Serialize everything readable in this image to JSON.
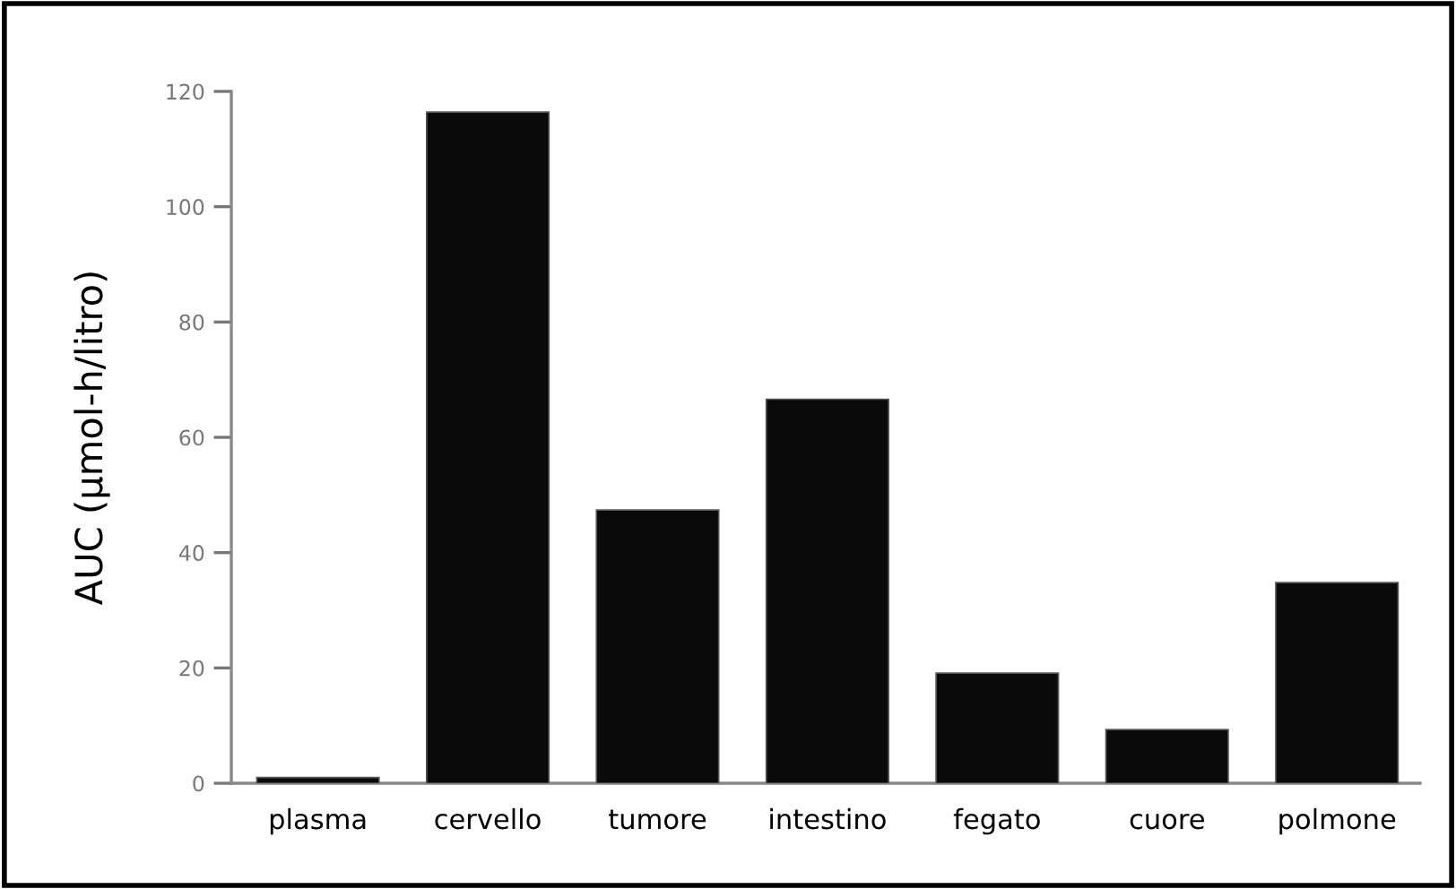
{
  "chart_data": {
    "type": "bar",
    "ylabel": "AUC (µmol-h/litro)",
    "categories": [
      "plasma",
      "cervello",
      "tumore",
      "intestino",
      "fegato",
      "cuore",
      "polmone"
    ],
    "values": [
      1.0,
      116.4,
      47.4,
      66.6,
      19.1,
      9.3,
      34.8
    ],
    "color": "#0a0a0a",
    "ylim": [
      0,
      120
    ],
    "yticks": [
      0,
      20,
      40,
      60,
      80,
      100,
      120
    ],
    "grid": false
  }
}
